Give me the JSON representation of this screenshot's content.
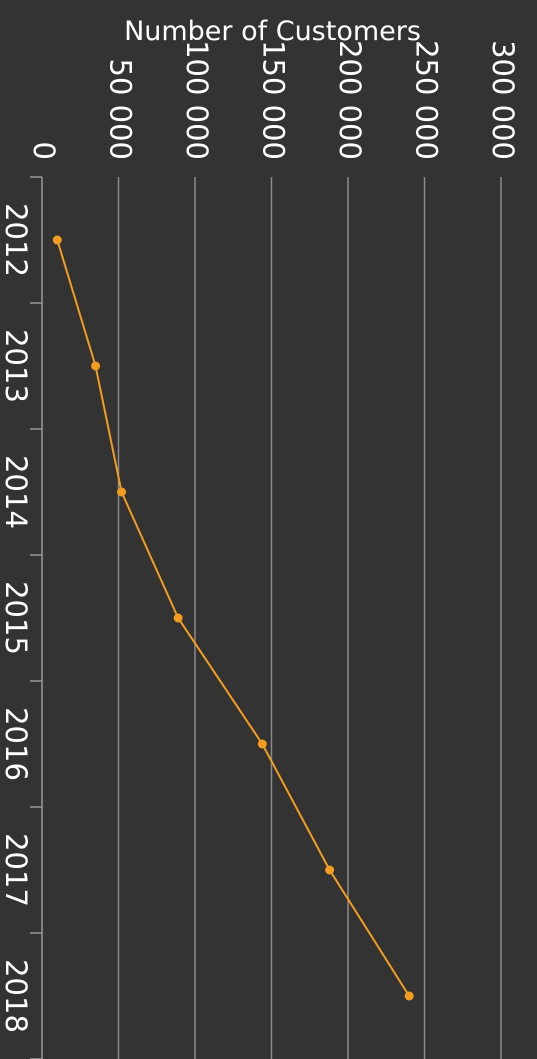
{
  "colors": {
    "background": "#333333",
    "series": "#f39c1f",
    "grid": "#8a8a8a",
    "text": "#ffffff"
  },
  "chart_data": {
    "type": "line",
    "orientation": "rotated-90-clockwise",
    "title": "",
    "ylabel": "Number of Customers",
    "xlabel": "",
    "x": [
      "2012",
      "2013",
      "2014",
      "2015",
      "2016",
      "2017",
      "2018"
    ],
    "series": [
      {
        "values": [
          10000,
          35000,
          52000,
          89000,
          144000,
          188000,
          240000
        ]
      }
    ],
    "ylim": [
      0,
      300000
    ],
    "yticks": [
      0,
      50000,
      100000,
      150000,
      200000,
      250000,
      300000
    ],
    "ytick_labels": [
      "0",
      "50 000",
      "100 000",
      "150 000",
      "200 000",
      "250 000",
      "300 000"
    ],
    "grid": true,
    "legend": "none"
  }
}
